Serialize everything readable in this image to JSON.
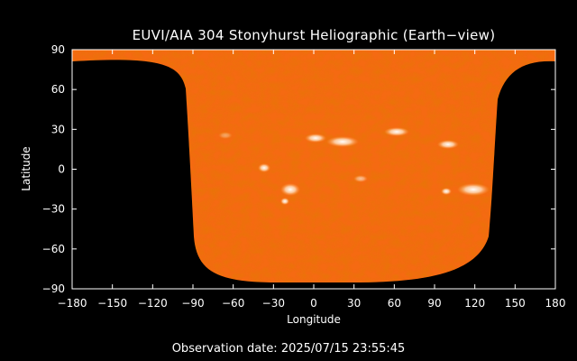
{
  "figure": {
    "title": "EUVI/AIA 304 Stonyhurst Heliographic (Earth−view)",
    "observation_label": "Observation date:",
    "observation_date": "2025/07/15 23:55:45",
    "xlabel": "Longitude",
    "ylabel": "Latitude",
    "colormap": [
      "#000000",
      "#5a1200",
      "#b03000",
      "#e05a10",
      "#ff8a30",
      "#ffd0a0",
      "#ffffff"
    ]
  },
  "chart_data": {
    "type": "heatmap",
    "title": "EUVI/AIA 304 Stonyhurst Heliographic (Earth−view)",
    "xlabel": "Longitude",
    "ylabel": "Latitude",
    "xlim": [
      -180,
      180
    ],
    "ylim": [
      -90,
      90
    ],
    "xticks": [
      "−180",
      "−150",
      "−120",
      "−90",
      "−60",
      "−30",
      "0",
      "30",
      "60",
      "90",
      "120",
      "150",
      "180"
    ],
    "yticks": [
      "90",
      "60",
      "30",
      "0",
      "−30",
      "−60",
      "−90"
    ],
    "grid": false,
    "legend": "none"
  }
}
